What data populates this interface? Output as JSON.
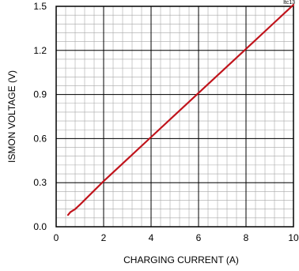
{
  "figure_tag": "ltc13",
  "chart_data": {
    "type": "line",
    "xlabel": "CHARGING CURRENT (A)",
    "ylabel": "ISMON VOLTAGE (V)",
    "xlim": [
      0,
      10
    ],
    "ylim": [
      0,
      1.5
    ],
    "x_ticks": [
      0,
      2,
      4,
      6,
      8,
      10
    ],
    "y_ticks": [
      0.0,
      0.3,
      0.6,
      0.9,
      1.2,
      1.5
    ],
    "x_tick_labels": [
      "0",
      "2",
      "4",
      "6",
      "8",
      "10"
    ],
    "y_tick_labels": [
      "0.0",
      "0.3",
      "0.6",
      "0.9",
      "1.2",
      "1.5"
    ],
    "grid": true,
    "line_color": "#c0141c",
    "series": [
      {
        "x": [
          0.5,
          0.6,
          0.8,
          1.0,
          2.0,
          3.0,
          4.0,
          5.0,
          6.0,
          7.0,
          8.0,
          9.0,
          10.0
        ],
        "values": [
          0.08,
          0.1,
          0.12,
          0.15,
          0.31,
          0.46,
          0.61,
          0.76,
          0.91,
          1.06,
          1.21,
          1.36,
          1.51
        ]
      }
    ]
  }
}
